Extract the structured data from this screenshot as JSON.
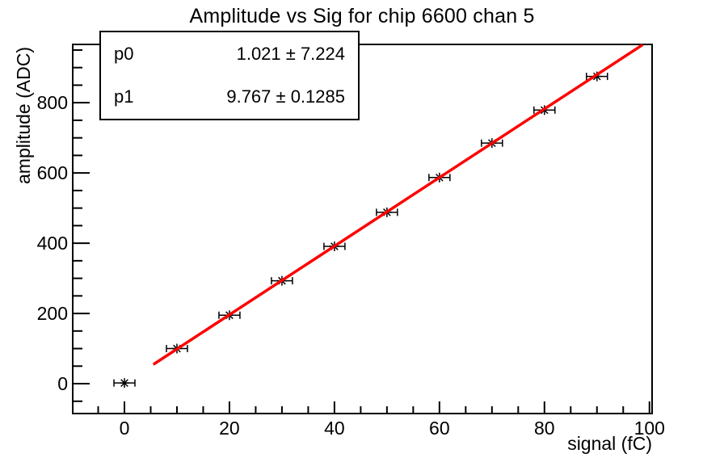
{
  "title": "Amplitude vs Sig for chip 6600 chan 5",
  "stats_box": {
    "rows": [
      {
        "param": "p0",
        "value": "1.021 ± 7.224"
      },
      {
        "param": "p1",
        "value": "9.767 ± 0.1285"
      }
    ]
  },
  "chart_data": {
    "type": "scatter",
    "title": "Amplitude vs Sig for chip 6600 chan 5",
    "xlabel": "signal (fC)",
    "ylabel": "amplitude (ADC)",
    "xlim": [
      -9.85,
      100.5
    ],
    "ylim": [
      -85,
      966
    ],
    "x_major_ticks": [
      0,
      20,
      40,
      60,
      80,
      100
    ],
    "x_minor_step": 5,
    "y_major_ticks": [
      0,
      200,
      400,
      600,
      800
    ],
    "y_minor_step": 50,
    "grid": false,
    "legend_position": "stats box top-left",
    "points": {
      "marker": "asterisk",
      "color": "#000000",
      "x": [
        0,
        10,
        20,
        30,
        40,
        50,
        60,
        70,
        80,
        90
      ],
      "y": [
        2,
        100,
        195,
        293,
        391,
        488,
        587,
        685,
        779,
        875
      ],
      "x_err": 2
    },
    "fit": {
      "type": "linear",
      "p0": 1.021,
      "p0_err": 7.224,
      "p1": 9.767,
      "p1_err": 0.1285,
      "x_range": [
        5.5,
        98.7
      ],
      "color": "#ff0000"
    }
  }
}
